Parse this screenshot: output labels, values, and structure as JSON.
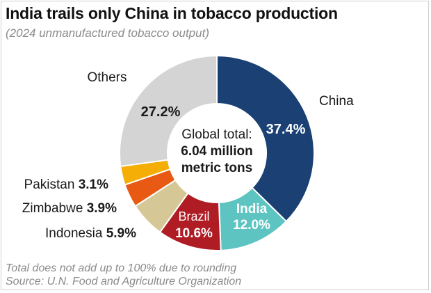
{
  "header": {
    "title": "India trails only China in tobacco production",
    "subtitle": "(2024 unmanufactured tobacco output)"
  },
  "center_label": {
    "line1": "Global total:",
    "line2": "6.04 million",
    "line3": "metric tons"
  },
  "footnotes": {
    "note": "Total does not add up to 100% due to rounding",
    "source": "Source: U.N. Food and Agriculture Organization"
  },
  "chart_data": {
    "type": "pie",
    "title": "India trails only China in tobacco production",
    "subtitle": "(2024 unmanufactured tobacco output)",
    "categories": [
      "China",
      "India",
      "Brazil",
      "Indonesia",
      "Zimbabwe",
      "Pakistan",
      "Others"
    ],
    "values": [
      37.4,
      12.0,
      10.6,
      5.9,
      3.9,
      3.1,
      27.2
    ],
    "labels": [
      "37.4%",
      "12.0%",
      "10.6%",
      "5.9%",
      "3.9%",
      "3.1%",
      "27.2%"
    ],
    "unit": "%",
    "colors": [
      "#1b4174",
      "#5ec4c1",
      "#b01c23",
      "#d6c896",
      "#e85a13",
      "#f4ae05",
      "#d4d4d4"
    ],
    "donut": true,
    "legend": "none"
  }
}
